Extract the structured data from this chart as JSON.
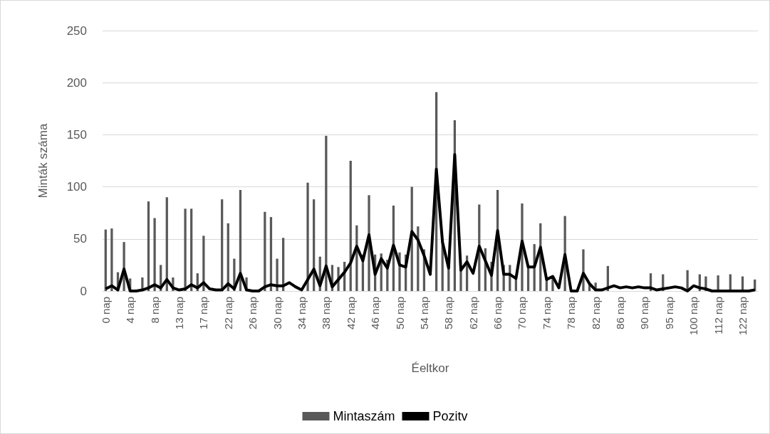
{
  "chart_data": {
    "type": "bar",
    "xlabel": "Éeltkor",
    "ylabel": "Minták száma",
    "categories": [
      "0 nap",
      null,
      null,
      null,
      "4 nap",
      null,
      null,
      null,
      "8 nap",
      null,
      null,
      null,
      "13 nap",
      null,
      null,
      null,
      "17 nap",
      null,
      null,
      null,
      "22 nap",
      null,
      null,
      null,
      "26 nap",
      null,
      null,
      null,
      "30 nap",
      null,
      null,
      null,
      "34 nap",
      null,
      null,
      null,
      "38 nap",
      null,
      null,
      null,
      "42 nap",
      null,
      null,
      null,
      "46 nap",
      null,
      null,
      null,
      "50 nap",
      null,
      null,
      null,
      "54 nap",
      null,
      null,
      null,
      "58 nap",
      null,
      null,
      null,
      "62 nap",
      null,
      null,
      null,
      "66 nap",
      null,
      null,
      null,
      "70 nap",
      null,
      null,
      null,
      "74 nap",
      null,
      null,
      null,
      "78 nap",
      null,
      null,
      null,
      "82 nap",
      null,
      null,
      null,
      "86 nap",
      null,
      null,
      null,
      "90 nap",
      null,
      null,
      null,
      "95 nap",
      null,
      null,
      null,
      "100 nap",
      null,
      null,
      null,
      "112 nap",
      null,
      null,
      null,
      "122 nap",
      null,
      null
    ],
    "series": [
      {
        "name": "Mintaszám",
        "color": "#595959",
        "values": [
          59,
          60,
          18,
          47,
          12,
          null,
          13,
          86,
          70,
          25,
          90,
          13,
          null,
          79,
          79,
          17,
          53,
          null,
          null,
          88,
          65,
          31,
          97,
          13,
          null,
          null,
          76,
          71,
          31,
          51,
          null,
          null,
          null,
          104,
          88,
          33,
          149,
          25,
          23,
          28,
          125,
          63,
          35,
          92,
          35,
          36,
          30,
          82,
          37,
          35,
          100,
          62,
          40,
          null,
          191,
          50,
          25,
          164,
          22,
          34,
          null,
          83,
          41,
          28,
          97,
          25,
          25,
          14,
          84,
          25,
          45,
          65,
          12,
          14,
          null,
          72,
          null,
          null,
          40,
          7,
          8,
          null,
          24,
          null,
          null,
          null,
          null,
          null,
          null,
          17,
          null,
          16,
          null,
          null,
          null,
          20,
          null,
          16,
          14,
          null,
          15,
          null,
          16,
          null,
          14,
          null,
          11
        ]
      },
      {
        "name": "Pozitv",
        "type": "line",
        "color": "#000000",
        "values": [
          2,
          5,
          1,
          21,
          0,
          0,
          1,
          3,
          6,
          3,
          11,
          3,
          1,
          2,
          6,
          3,
          8,
          2,
          1,
          1,
          7,
          2,
          17,
          1,
          0,
          0,
          4,
          6,
          5,
          5,
          8,
          4,
          1,
          11,
          21,
          5,
          24,
          4,
          11,
          18,
          27,
          43,
          29,
          54,
          16,
          31,
          22,
          44,
          25,
          23,
          57,
          49,
          34,
          16,
          117,
          47,
          22,
          131,
          20,
          28,
          17,
          43,
          29,
          15,
          58,
          16,
          16,
          12,
          48,
          23,
          23,
          42,
          11,
          14,
          3,
          35,
          0,
          0,
          17,
          7,
          1,
          1,
          3,
          5,
          3,
          4,
          3,
          4,
          3,
          3,
          1,
          2,
          3,
          4,
          3,
          0,
          5,
          3,
          2,
          0,
          0,
          0,
          0,
          0,
          0,
          0,
          1
        ]
      }
    ],
    "ylim": [
      0,
      250
    ],
    "yticks": [
      0,
      50,
      100,
      150,
      200,
      250
    ],
    "grid": "y",
    "legend": "bottom"
  }
}
